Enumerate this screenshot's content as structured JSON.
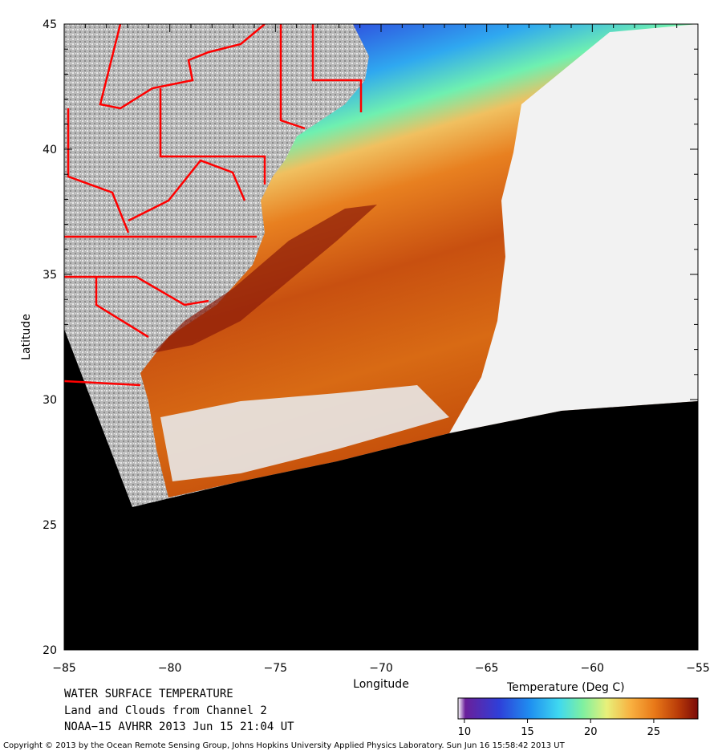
{
  "map": {
    "xlabel": "Longitude",
    "ylabel": "Latitude",
    "lon_range": [
      -85,
      -55
    ],
    "lat_range": [
      20,
      45
    ],
    "lon_ticks": [
      "−85",
      "−80",
      "−75",
      "−70",
      "−65",
      "−60",
      "−55"
    ],
    "lat_ticks": [
      "45",
      "40",
      "35",
      "30",
      "25",
      "20"
    ],
    "colors": {
      "land_clouds": "#bdbdbd",
      "no_data": "#000000",
      "borders": "#ff0000",
      "cloud": "#f4f4f4"
    }
  },
  "caption": {
    "line1": "WATER SURFACE TEMPERATURE",
    "line2": "Land and Clouds from Channel 2",
    "line3": "NOAA−15 AVHRR 2013 Jun 15 21:04 UT"
  },
  "colorbar": {
    "title": "Temperature (Deg C)",
    "ticks": [
      "10",
      "15",
      "20",
      "25"
    ],
    "range": [
      9.5,
      28.5
    ],
    "tick_values": [
      10,
      15,
      20,
      25
    ],
    "colors": [
      "#ffffff",
      "#6a1f9a",
      "#2f3fd8",
      "#1f8ff0",
      "#3fd8f0",
      "#7ff0a0",
      "#e8f07a",
      "#f8b040",
      "#e87818",
      "#b83a08",
      "#7a0a08"
    ]
  },
  "copyright": "Copyright © 2013 by the Ocean Remote Sensing Group, Johns Hopkins University Applied Physics Laboratory. Sun Jun 16 15:58:42 2013 UT"
}
